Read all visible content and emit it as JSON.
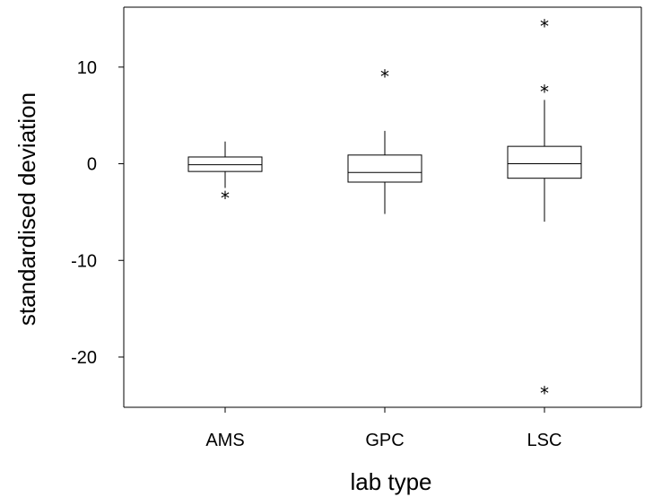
{
  "chart_data": {
    "type": "box",
    "xlabel": "lab type",
    "ylabel": "standardised deviation",
    "ylim": [
      -25.2,
      16.2
    ],
    "yticks": [
      10,
      0,
      -10,
      -20
    ],
    "ytick_labels": [
      "10",
      "0",
      "-10",
      "-20"
    ],
    "categories": [
      "AMS",
      "GPC",
      "LSC"
    ],
    "boxes": [
      {
        "category": "AMS",
        "whisker_low": -2.5,
        "q1": -0.8,
        "median": -0.1,
        "q3": 0.7,
        "whisker_high": 2.3,
        "outliers": [
          -3.3
        ]
      },
      {
        "category": "GPC",
        "whisker_low": -5.2,
        "q1": -1.9,
        "median": -0.9,
        "q3": 0.9,
        "whisker_high": 3.4,
        "outliers": [
          9.3
        ]
      },
      {
        "category": "LSC",
        "whisker_low": -6.0,
        "q1": -1.5,
        "median": 0.0,
        "q3": 1.8,
        "whisker_high": 6.6,
        "outliers": [
          14.5,
          7.7,
          -23.5
        ]
      }
    ],
    "outlier_marker": "*",
    "grid": false,
    "legend": "none"
  }
}
